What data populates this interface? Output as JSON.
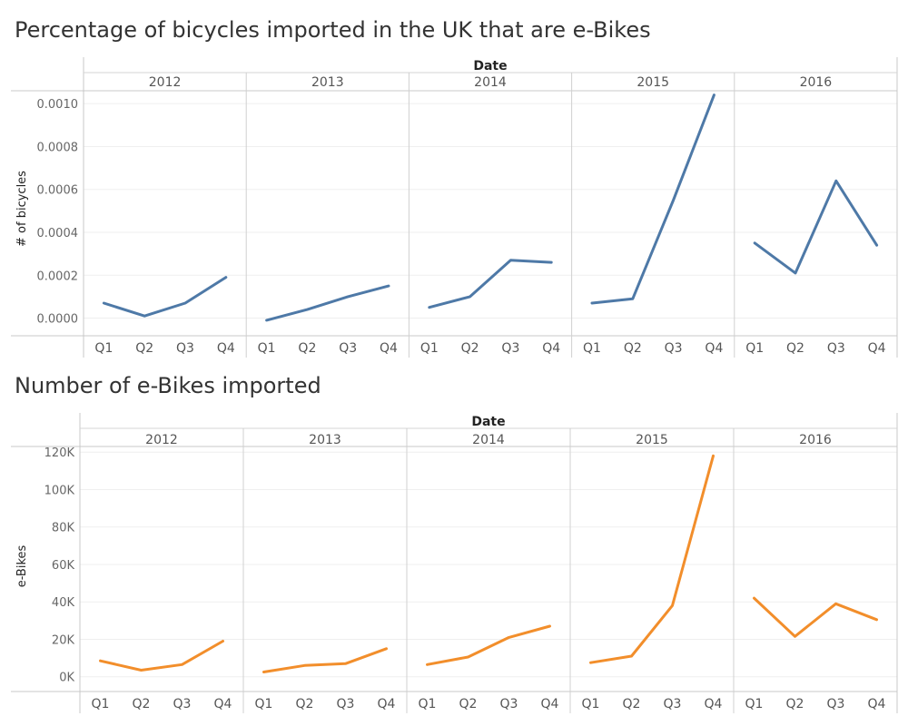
{
  "chart_data": [
    {
      "type": "line",
      "title": "Percentage of bicycles imported in the UK that are e-Bikes",
      "xlabel": "Date",
      "ylabel": "# of bicycles",
      "years": [
        "2012",
        "2013",
        "2014",
        "2015",
        "2016"
      ],
      "quarters": [
        "Q1",
        "Q2",
        "Q3",
        "Q4"
      ],
      "ylim": [
        -4e-05,
        0.00106
      ],
      "yticks": [
        0.0,
        0.0002,
        0.0004,
        0.0006,
        0.0008,
        0.001
      ],
      "ytick_labels": [
        "0.0000",
        "0.0002",
        "0.0004",
        "0.0006",
        "0.0008",
        "0.0010"
      ],
      "color": "#4e79a7",
      "grid": true,
      "series": [
        {
          "year": "2012",
          "values": [
            7e-05,
            1e-05,
            7e-05,
            0.00019
          ]
        },
        {
          "year": "2013",
          "values": [
            -1e-05,
            4e-05,
            0.0001,
            0.00015
          ]
        },
        {
          "year": "2014",
          "values": [
            5e-05,
            0.0001,
            0.00027,
            0.00026
          ]
        },
        {
          "year": "2015",
          "values": [
            7e-05,
            9e-05,
            0.00055,
            0.00104
          ]
        },
        {
          "year": "2016",
          "values": [
            0.00035,
            0.00021,
            0.00064,
            0.00034
          ]
        }
      ]
    },
    {
      "type": "line",
      "title": "Number of e-Bikes imported",
      "xlabel": "Date",
      "ylabel": "e-Bikes",
      "years": [
        "2012",
        "2013",
        "2014",
        "2015",
        "2016"
      ],
      "quarters": [
        "Q1",
        "Q2",
        "Q3",
        "Q4"
      ],
      "ylim": [
        -5000,
        123000
      ],
      "yticks": [
        0,
        20000,
        40000,
        60000,
        80000,
        100000,
        120000
      ],
      "ytick_labels": [
        "0K",
        "20K",
        "40K",
        "60K",
        "80K",
        "100K",
        "120K"
      ],
      "color": "#f28e2b",
      "grid": true,
      "series": [
        {
          "year": "2012",
          "values": [
            8500,
            3500,
            6500,
            19000
          ]
        },
        {
          "year": "2013",
          "values": [
            2500,
            6000,
            7000,
            15000
          ]
        },
        {
          "year": "2014",
          "values": [
            6500,
            10500,
            21000,
            27000
          ]
        },
        {
          "year": "2015",
          "values": [
            7500,
            11000,
            38000,
            118000
          ]
        },
        {
          "year": "2016",
          "values": [
            42000,
            21500,
            39000,
            30500
          ]
        }
      ]
    }
  ]
}
